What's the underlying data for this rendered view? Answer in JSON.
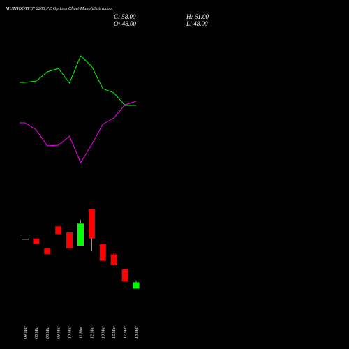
{
  "header": {
    "title": "MUTHOOTFIN 2200 PE Options Chart MunafaSutra.com",
    "close": "C: 58.00",
    "open": "O: 48.00",
    "high": "H: 61.00",
    "low": "L: 48.00"
  },
  "chart_data": {
    "type": "candlestick",
    "categories": [
      "04 Mar",
      "05 Mar",
      "06 Mar",
      "09 Mar",
      "10 Mar",
      "11 Mar",
      "12 Mar",
      "13 Mar",
      "16 Mar",
      "17 Mar",
      "18 Mar"
    ],
    "ohlc": [
      {
        "open": 126.5,
        "high": 126.5,
        "low": 126.3,
        "close": 126.4
      },
      {
        "open": 127.7,
        "high": 127.7,
        "low": 118.6,
        "close": 118.6
      },
      {
        "open": 111.6,
        "high": 111.6,
        "low": 102.4,
        "close": 102.4
      },
      {
        "open": 146.9,
        "high": 146.9,
        "low": 134.9,
        "close": 134.9
      },
      {
        "open": 137.2,
        "high": 137.2,
        "low": 111.6,
        "close": 111.6
      },
      {
        "open": 116.2,
        "high": 157.1,
        "low": 116.2,
        "close": 151.4
      },
      {
        "open": 174.7,
        "high": 174.7,
        "low": 107.0,
        "close": 127.7
      },
      {
        "open": 118.6,
        "high": 118.6,
        "low": 89.9,
        "close": 92.1
      },
      {
        "open": 102.4,
        "high": 104.7,
        "low": 83.1,
        "close": 85.4
      },
      {
        "open": 78.5,
        "high": 78.5,
        "low": 59.3,
        "close": 59.3
      },
      {
        "open": 48.0,
        "high": 61.0,
        "low": 48.0,
        "close": 58.0
      }
    ],
    "overlay_lines": [
      {
        "color": "#00ff00",
        "points": [
          [
            -0.5,
            118
          ],
          [
            0,
            118
          ],
          [
            1,
            116
          ],
          [
            2,
            103
          ],
          [
            3,
            98
          ],
          [
            4,
            119
          ],
          [
            5,
            80
          ],
          [
            6,
            95
          ],
          [
            7,
            127
          ],
          [
            8,
            133
          ],
          [
            9,
            151
          ],
          [
            10,
            151
          ]
        ]
      },
      {
        "color": "#ff00ff",
        "points": [
          [
            -0.5,
            176
          ],
          [
            0,
            176
          ],
          [
            1,
            186
          ],
          [
            2,
            209
          ],
          [
            3,
            208
          ],
          [
            4,
            195
          ],
          [
            5,
            233
          ],
          [
            6,
            207
          ],
          [
            7,
            178
          ],
          [
            8,
            169
          ],
          [
            9,
            150
          ],
          [
            10,
            145
          ]
        ]
      }
    ],
    "colors": {
      "up": "#00ff00",
      "down": "#ff0000",
      "doji": "#ffffff",
      "background": "#000000"
    }
  }
}
